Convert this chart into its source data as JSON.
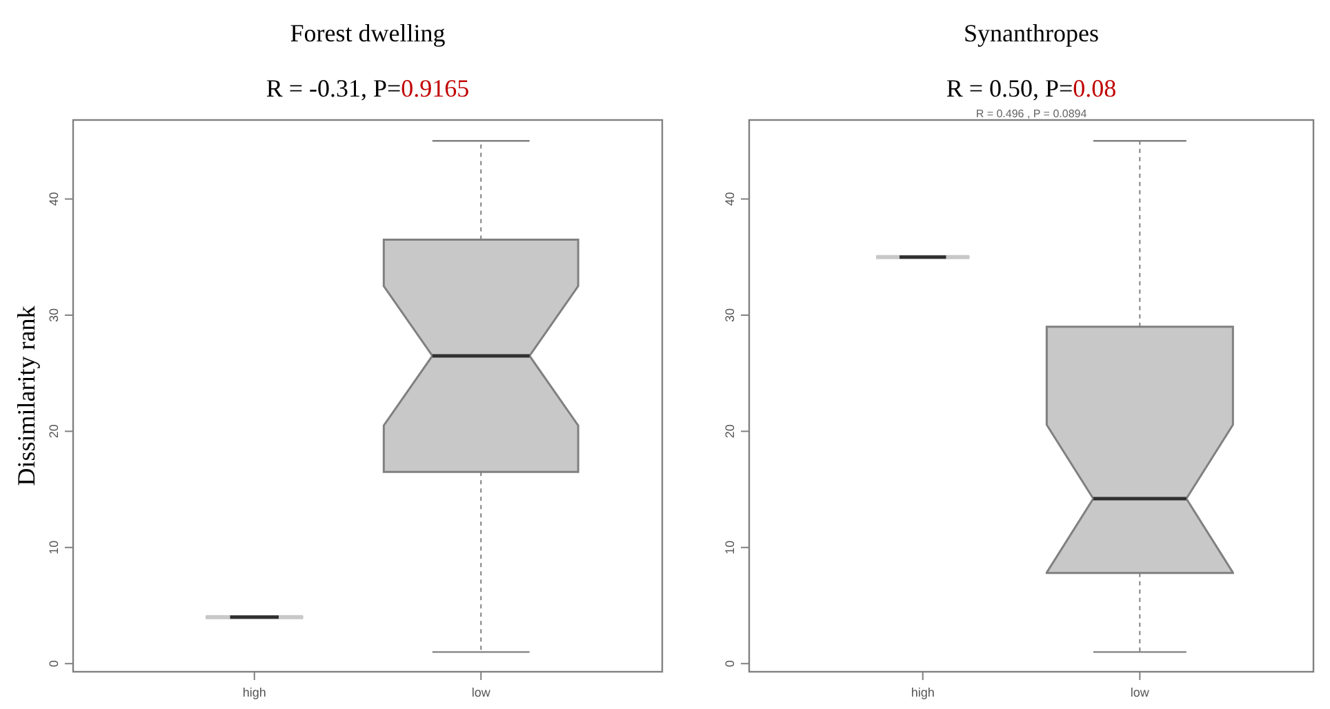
{
  "chart_data": [
    {
      "type": "box",
      "title": "Forest dwelling",
      "subtitle": "R = -0.31, P=0.9165",
      "ylabel": "Dissimilarity rank",
      "categories": [
        "high",
        "low"
      ],
      "color": "#c8c8c8",
      "boxes": [
        {
          "low": 4,
          "q1": 4,
          "median": 4,
          "q3": 4,
          "high": 4
        },
        {
          "low": 1,
          "q1": 16.5,
          "median": 26.5,
          "q3": 36.5,
          "high": 45
        }
      ],
      "ylim": [
        -0.7,
        46.8
      ],
      "yticks": [
        0,
        10,
        20,
        30,
        40
      ],
      "grid": false
    },
    {
      "type": "box",
      "title": "Synanthropes",
      "subtitle": "R = 0.50, P=0.08",
      "annotations": [
        "R = 0.496 , P = 0.0894"
      ],
      "categories": [
        "high",
        "low"
      ],
      "color": "#c8c8c8",
      "boxes": [
        {
          "low": 35,
          "q1": 35,
          "median": 35,
          "q3": 35,
          "high": 35
        },
        {
          "low": 1,
          "q1": 7.8,
          "median": 14.2,
          "q3": 29,
          "high": 45
        }
      ],
      "ylim": [
        -0.7,
        46.8
      ],
      "yticks": [
        0,
        10,
        20,
        30,
        40
      ],
      "grid": false
    }
  ]
}
